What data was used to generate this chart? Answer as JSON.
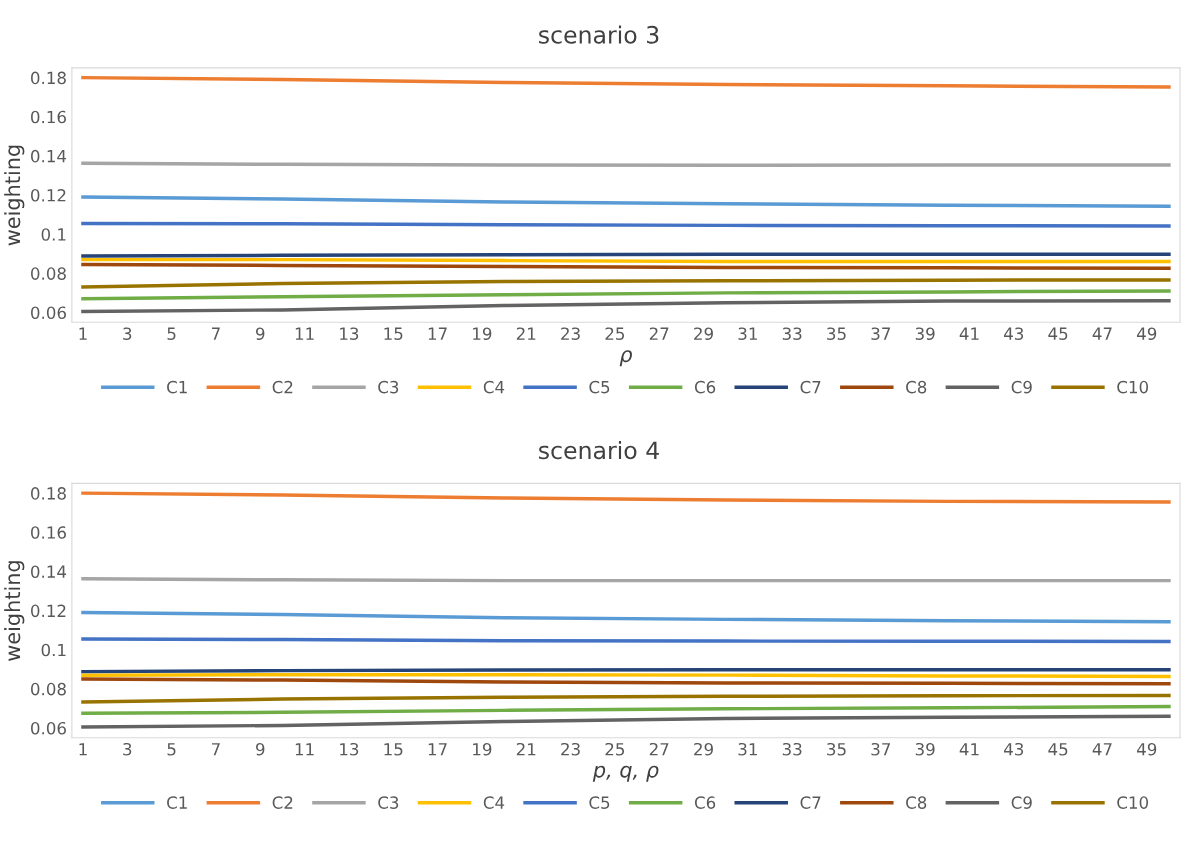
{
  "chart_data": [
    {
      "type": "line",
      "title": "scenario 3",
      "xlabel": "ρ",
      "ylabel": "weighting",
      "xlim": [
        0.5,
        50.5
      ],
      "xticks": [
        1,
        3,
        5,
        7,
        9,
        11,
        13,
        15,
        17,
        19,
        21,
        23,
        25,
        27,
        29,
        31,
        33,
        35,
        37,
        39,
        41,
        43,
        45,
        47,
        49
      ],
      "ylim": [
        0.055,
        0.185
      ],
      "yticks": [
        0.06,
        0.08,
        {
          "value": 0.1,
          "label": "0.1"
        },
        0.12,
        0.14,
        0.16,
        0.18
      ],
      "grid": false,
      "legend": "bottom",
      "marker": "none",
      "line_style": "solid",
      "series": [
        {
          "name": "C1",
          "color": "#5b9bd5",
          "x": [
            1,
            10,
            20,
            30,
            40,
            50
          ],
          "values": [
            0.119,
            0.118,
            0.1165,
            0.1155,
            0.1148,
            0.1143
          ]
        },
        {
          "name": "C2",
          "color": "#ed7d31",
          "x": [
            1,
            10,
            20,
            30,
            40,
            50
          ],
          "values": [
            0.18,
            0.179,
            0.1775,
            0.1765,
            0.1758,
            0.1752
          ]
        },
        {
          "name": "C3",
          "color": "#a5a5a5",
          "x": [
            1,
            10,
            20,
            30,
            40,
            50
          ],
          "values": [
            0.1362,
            0.1357,
            0.1353,
            0.1352,
            0.1353,
            0.1353
          ]
        },
        {
          "name": "C4",
          "color": "#ffc000",
          "x": [
            1,
            10,
            20,
            30,
            40,
            50
          ],
          "values": [
            0.087,
            0.087,
            0.0865,
            0.086,
            0.086,
            0.086
          ]
        },
        {
          "name": "C5",
          "color": "#4472c4",
          "x": [
            1,
            10,
            20,
            30,
            40,
            50
          ],
          "values": [
            0.1055,
            0.1053,
            0.1048,
            0.1045,
            0.1043,
            0.1042
          ]
        },
        {
          "name": "C6",
          "color": "#70ad47",
          "x": [
            1,
            10,
            20,
            30,
            40,
            50
          ],
          "values": [
            0.067,
            0.068,
            0.069,
            0.07,
            0.0705,
            0.071
          ]
        },
        {
          "name": "C7",
          "color": "#264478",
          "x": [
            1,
            10,
            20,
            30,
            40,
            50
          ],
          "values": [
            0.0888,
            0.0892,
            0.0895,
            0.0897,
            0.0898,
            0.0898
          ]
        },
        {
          "name": "C8",
          "color": "#9e480e",
          "x": [
            1,
            10,
            20,
            30,
            40,
            50
          ],
          "values": [
            0.0845,
            0.084,
            0.0835,
            0.083,
            0.0828,
            0.0826
          ]
        },
        {
          "name": "C9",
          "color": "#636363",
          "x": [
            1,
            10,
            20,
            30,
            40,
            50
          ],
          "values": [
            0.0605,
            0.0613,
            0.0635,
            0.065,
            0.0658,
            0.066
          ]
        },
        {
          "name": "C10",
          "color": "#997300",
          "x": [
            1,
            10,
            20,
            30,
            40,
            50
          ],
          "values": [
            0.073,
            0.0748,
            0.0758,
            0.0762,
            0.0765,
            0.0766
          ]
        }
      ]
    },
    {
      "type": "line",
      "title": "scenario 4",
      "xlabel": "p, q, ρ",
      "ylabel": "weighting",
      "xlim": [
        0.5,
        50.5
      ],
      "xticks": [
        1,
        3,
        5,
        7,
        9,
        11,
        13,
        15,
        17,
        19,
        21,
        23,
        25,
        27,
        29,
        31,
        33,
        35,
        37,
        39,
        41,
        43,
        45,
        47,
        49
      ],
      "ylim": [
        0.055,
        0.185
      ],
      "yticks": [
        0.06,
        0.08,
        {
          "value": 0.1,
          "label": "0.1"
        },
        0.12,
        0.14,
        0.16,
        0.18
      ],
      "grid": false,
      "legend": "bottom",
      "marker": "none",
      "line_style": "solid",
      "series": [
        {
          "name": "C1",
          "color": "#5b9bd5",
          "x": [
            1,
            10,
            20,
            30,
            40,
            50
          ],
          "values": [
            0.119,
            0.118,
            0.1163,
            0.1155,
            0.1148,
            0.1143
          ]
        },
        {
          "name": "C2",
          "color": "#ed7d31",
          "x": [
            1,
            10,
            20,
            30,
            40,
            50
          ],
          "values": [
            0.18,
            0.179,
            0.1775,
            0.1765,
            0.1758,
            0.1755
          ]
        },
        {
          "name": "C3",
          "color": "#a5a5a5",
          "x": [
            1,
            10,
            20,
            30,
            40,
            50
          ],
          "values": [
            0.1362,
            0.1357,
            0.1353,
            0.1353,
            0.1353,
            0.1353
          ]
        },
        {
          "name": "C4",
          "color": "#ffc000",
          "x": [
            1,
            10,
            20,
            30,
            40,
            50
          ],
          "values": [
            0.087,
            0.0872,
            0.0872,
            0.087,
            0.0866,
            0.0863
          ]
        },
        {
          "name": "C5",
          "color": "#4472c4",
          "x": [
            1,
            10,
            20,
            30,
            40,
            50
          ],
          "values": [
            0.1055,
            0.1052,
            0.1046,
            0.1044,
            0.1043,
            0.1042
          ]
        },
        {
          "name": "C6",
          "color": "#70ad47",
          "x": [
            1,
            10,
            20,
            30,
            40,
            50
          ],
          "values": [
            0.0675,
            0.068,
            0.069,
            0.0698,
            0.0703,
            0.071
          ]
        },
        {
          "name": "C7",
          "color": "#264478",
          "x": [
            1,
            10,
            20,
            30,
            40,
            50
          ],
          "values": [
            0.0888,
            0.0893,
            0.0896,
            0.0897,
            0.0898,
            0.0898
          ]
        },
        {
          "name": "C8",
          "color": "#9e480e",
          "x": [
            1,
            10,
            20,
            30,
            40,
            50
          ],
          "values": [
            0.085,
            0.0845,
            0.0835,
            0.083,
            0.0828,
            0.0826
          ]
        },
        {
          "name": "C9",
          "color": "#636363",
          "x": [
            1,
            10,
            20,
            30,
            40,
            50
          ],
          "values": [
            0.0605,
            0.0613,
            0.0633,
            0.0648,
            0.0655,
            0.066
          ]
        },
        {
          "name": "C10",
          "color": "#997300",
          "x": [
            1,
            10,
            20,
            30,
            40,
            50
          ],
          "values": [
            0.0733,
            0.0748,
            0.0757,
            0.0762,
            0.0765,
            0.0766
          ]
        }
      ]
    }
  ]
}
